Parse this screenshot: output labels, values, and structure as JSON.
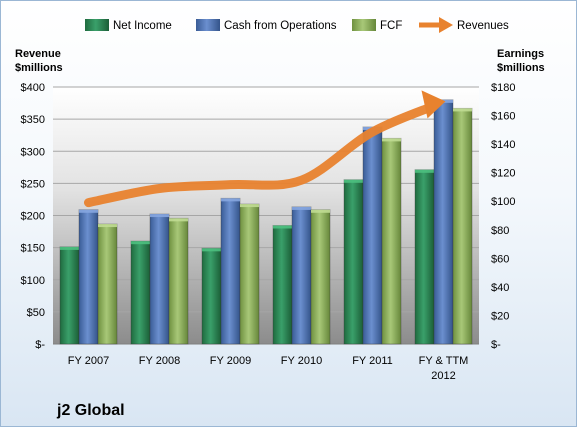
{
  "chart_data": {
    "type": "bar",
    "title": "j2 Global",
    "categories": [
      "FY 2007",
      "FY 2008",
      "FY 2009",
      "FY 2010",
      "FY 2011",
      "FY & TTM 2012"
    ],
    "left_axis": {
      "label_line1": "Revenue",
      "label_line2": "$millions",
      "ylim": [
        0,
        400
      ],
      "ticks": [
        "$-",
        "$50",
        "$100",
        "$150",
        "$200",
        "$250",
        "$300",
        "$350",
        "$400"
      ]
    },
    "right_axis": {
      "label_line1": "Earnings",
      "label_line2": "$millions",
      "ylim": [
        0,
        180
      ],
      "ticks": [
        "$-",
        "$20",
        "$40",
        "$60",
        "$80",
        "$100",
        "$120",
        "$140",
        "$160",
        "$180"
      ]
    },
    "series": [
      {
        "name": "Net Income",
        "type": "bar",
        "axis": "right",
        "color": "#2e8b57",
        "values": [
          68,
          72,
          67,
          83,
          115,
          122
        ]
      },
      {
        "name": "Cash from Operations",
        "type": "bar",
        "axis": "right",
        "color": "#4f74b3",
        "values": [
          94,
          91,
          102,
          96,
          152,
          171
        ]
      },
      {
        "name": "FCF",
        "type": "bar",
        "axis": "right",
        "color": "#8fb35a",
        "values": [
          84,
          88,
          98,
          94,
          144,
          165
        ]
      },
      {
        "name": "Revenues",
        "type": "line",
        "axis": "left",
        "color": "#e8822e",
        "values": [
          220,
          242,
          248,
          255,
          330,
          376
        ]
      }
    ],
    "grid": true,
    "legend": "top"
  }
}
